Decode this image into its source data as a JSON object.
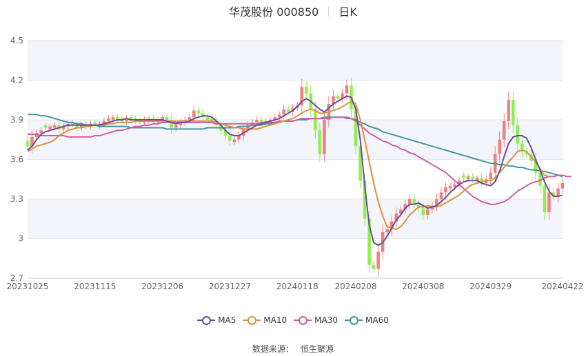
{
  "header": {
    "title": "华茂股份 000850",
    "period": "日K"
  },
  "source": {
    "label": "数据来源：",
    "name": "恒生聚源"
  },
  "chart_data": {
    "type": "candlestick",
    "title": "华茂股份 000850",
    "ylim": [
      2.7,
      4.5
    ],
    "yticks": [
      "4.5",
      "4.2",
      "3.9",
      "3.6",
      "3.3",
      "3",
      "2.7"
    ],
    "ytick_values": [
      4.5,
      4.2,
      3.9,
      3.6,
      3.3,
      3.0,
      2.7
    ],
    "xticks": [
      "20231025",
      "20231115",
      "20231206",
      "20231227",
      "20240118",
      "20240208",
      "20240308",
      "20240329",
      "20240422"
    ],
    "xtick_positions": [
      0,
      15,
      30,
      45,
      60,
      73,
      88,
      103,
      119
    ],
    "num_days": 120,
    "colors": {
      "up": "#f08080",
      "down": "#90ee50",
      "ma5": "#6a4c9c",
      "ma10": "#e0913a",
      "ma30": "#d05ca8",
      "ma60": "#3e9a9c"
    },
    "legend": [
      {
        "name": "MA5",
        "color": "#6a4c9c"
      },
      {
        "name": "MA10",
        "color": "#e0913a"
      },
      {
        "name": "MA30",
        "color": "#d05ca8"
      },
      {
        "name": "MA60",
        "color": "#3e9a9c"
      }
    ],
    "close": [
      3.7,
      3.77,
      3.8,
      3.82,
      3.84,
      3.85,
      3.86,
      3.83,
      3.85,
      3.87,
      3.86,
      3.84,
      3.86,
      3.85,
      3.87,
      3.86,
      3.87,
      3.89,
      3.91,
      3.92,
      3.9,
      3.89,
      3.91,
      3.9,
      3.89,
      3.88,
      3.9,
      3.91,
      3.89,
      3.9,
      3.92,
      3.9,
      3.84,
      3.86,
      3.88,
      3.9,
      3.92,
      3.97,
      3.95,
      3.92,
      3.9,
      3.89,
      3.86,
      3.82,
      3.78,
      3.74,
      3.75,
      3.78,
      3.83,
      3.86,
      3.88,
      3.9,
      3.88,
      3.89,
      3.9,
      3.92,
      3.94,
      3.98,
      3.96,
      3.99,
      4.01,
      4.15,
      4.1,
      3.98,
      3.82,
      3.64,
      3.9,
      4.02,
      4.08,
      4.06,
      4.1,
      4.16,
      3.98,
      3.7,
      3.44,
      3.15,
      2.8,
      2.77,
      2.9,
      3.05,
      3.07,
      3.13,
      3.19,
      3.22,
      3.26,
      3.3,
      3.26,
      3.23,
      3.18,
      3.22,
      3.25,
      3.3,
      3.35,
      3.39,
      3.4,
      3.41,
      3.44,
      3.46,
      3.47,
      3.45,
      3.46,
      3.42,
      3.45,
      3.5,
      3.64,
      3.75,
      3.89,
      4.05,
      3.86,
      3.72,
      3.66,
      3.64,
      3.59,
      3.5,
      3.4,
      3.2,
      3.35,
      3.32,
      3.38,
      3.42
    ],
    "up_days": [
      1,
      2,
      3,
      5,
      6,
      8,
      9,
      12,
      14,
      16,
      17,
      18,
      19,
      22,
      26,
      27,
      29,
      30,
      33,
      34,
      35,
      36,
      37,
      46,
      47,
      48,
      49,
      50,
      51,
      53,
      54,
      55,
      56,
      57,
      59,
      60,
      61,
      66,
      67,
      68,
      70,
      71,
      78,
      79,
      80,
      81,
      82,
      83,
      84,
      85,
      89,
      90,
      91,
      92,
      93,
      94,
      95,
      96,
      98,
      100,
      102,
      103,
      104,
      105,
      106,
      107,
      116,
      118,
      119
    ],
    "ma5": [
      3.67,
      3.7,
      3.75,
      3.79,
      3.81,
      3.82,
      3.83,
      3.84,
      3.85,
      3.86,
      3.86,
      3.86,
      3.86,
      3.86,
      3.86,
      3.86,
      3.86,
      3.87,
      3.88,
      3.89,
      3.9,
      3.9,
      3.91,
      3.9,
      3.9,
      3.9,
      3.9,
      3.9,
      3.9,
      3.9,
      3.9,
      3.89,
      3.88,
      3.87,
      3.88,
      3.88,
      3.89,
      3.91,
      3.92,
      3.93,
      3.93,
      3.92,
      3.89,
      3.86,
      3.82,
      3.79,
      3.78,
      3.78,
      3.8,
      3.82,
      3.84,
      3.86,
      3.87,
      3.88,
      3.89,
      3.9,
      3.91,
      3.93,
      3.95,
      3.97,
      4.0,
      4.04,
      4.06,
      4.04,
      4.01,
      3.98,
      3.96,
      3.99,
      4.02,
      4.04,
      4.06,
      4.08,
      4.07,
      3.98,
      3.75,
      3.4,
      3.1,
      2.97,
      2.95,
      2.97,
      3.02,
      3.08,
      3.14,
      3.18,
      3.23,
      3.26,
      3.26,
      3.27,
      3.25,
      3.23,
      3.24,
      3.25,
      3.28,
      3.31,
      3.35,
      3.38,
      3.41,
      3.43,
      3.44,
      3.44,
      3.44,
      3.42,
      3.41,
      3.4,
      3.43,
      3.51,
      3.62,
      3.72,
      3.77,
      3.78,
      3.78,
      3.76,
      3.69,
      3.6,
      3.52,
      3.43,
      3.36,
      3.32,
      3.32,
      3.33
    ],
    "ma10": [
      3.66,
      3.68,
      3.7,
      3.71,
      3.72,
      3.73,
      3.75,
      3.78,
      3.8,
      3.82,
      3.83,
      3.84,
      3.84,
      3.85,
      3.85,
      3.86,
      3.86,
      3.86,
      3.87,
      3.87,
      3.88,
      3.88,
      3.88,
      3.88,
      3.89,
      3.89,
      3.89,
      3.89,
      3.89,
      3.89,
      3.89,
      3.89,
      3.89,
      3.89,
      3.89,
      3.89,
      3.89,
      3.89,
      3.89,
      3.89,
      3.89,
      3.89,
      3.88,
      3.87,
      3.86,
      3.85,
      3.84,
      3.84,
      3.83,
      3.83,
      3.83,
      3.83,
      3.84,
      3.85,
      3.86,
      3.87,
      3.88,
      3.89,
      3.9,
      3.91,
      3.93,
      3.95,
      3.97,
      3.98,
      3.97,
      3.95,
      3.95,
      3.96,
      3.97,
      3.98,
      4.0,
      4.02,
      4.04,
      4.02,
      3.9,
      3.75,
      3.58,
      3.42,
      3.28,
      3.17,
      3.09,
      3.08,
      3.07,
      3.09,
      3.13,
      3.18,
      3.21,
      3.24,
      3.24,
      3.25,
      3.24,
      3.24,
      3.25,
      3.27,
      3.29,
      3.31,
      3.33,
      3.36,
      3.39,
      3.41,
      3.42,
      3.43,
      3.44,
      3.44,
      3.46,
      3.5,
      3.54,
      3.58,
      3.62,
      3.66,
      3.67,
      3.66,
      3.62,
      3.58,
      3.53,
      3.48,
      3.47
    ],
    "ma30": [
      3.79,
      3.79,
      3.79,
      3.78,
      3.78,
      3.78,
      3.78,
      3.78,
      3.78,
      3.77,
      3.77,
      3.77,
      3.77,
      3.77,
      3.77,
      3.78,
      3.78,
      3.79,
      3.8,
      3.81,
      3.82,
      3.82,
      3.83,
      3.84,
      3.85,
      3.85,
      3.86,
      3.86,
      3.87,
      3.87,
      3.88,
      3.88,
      3.88,
      3.88,
      3.88,
      3.88,
      3.88,
      3.88,
      3.88,
      3.88,
      3.88,
      3.88,
      3.87,
      3.87,
      3.87,
      3.87,
      3.87,
      3.87,
      3.87,
      3.87,
      3.87,
      3.87,
      3.88,
      3.88,
      3.88,
      3.88,
      3.89,
      3.89,
      3.89,
      3.89,
      3.9,
      3.91,
      3.91,
      3.91,
      3.91,
      3.91,
      3.91,
      3.91,
      3.92,
      3.92,
      3.92,
      3.92,
      3.91,
      3.89,
      3.86,
      3.83,
      3.8,
      3.78,
      3.76,
      3.74,
      3.73,
      3.71,
      3.7,
      3.68,
      3.67,
      3.65,
      3.64,
      3.62,
      3.6,
      3.58,
      3.56,
      3.54,
      3.52,
      3.5,
      3.47,
      3.44,
      3.41,
      3.38,
      3.35,
      3.32,
      3.3,
      3.28,
      3.27,
      3.26,
      3.26,
      3.27,
      3.28,
      3.3,
      3.33,
      3.36,
      3.38,
      3.4,
      3.42,
      3.43,
      3.44,
      3.46,
      3.47,
      3.47,
      3.48,
      3.48,
      3.47,
      3.47
    ],
    "ma60": [
      3.94,
      3.94,
      3.94,
      3.93,
      3.93,
      3.92,
      3.91,
      3.9,
      3.89,
      3.88,
      3.88,
      3.87,
      3.87,
      3.86,
      3.86,
      3.86,
      3.85,
      3.85,
      3.85,
      3.85,
      3.85,
      3.85,
      3.85,
      3.84,
      3.84,
      3.84,
      3.84,
      3.84,
      3.84,
      3.84,
      3.84,
      3.83,
      3.83,
      3.83,
      3.83,
      3.83,
      3.83,
      3.83,
      3.83,
      3.83,
      3.84,
      3.84,
      3.84,
      3.84,
      3.84,
      3.84,
      3.84,
      3.85,
      3.85,
      3.85,
      3.86,
      3.86,
      3.86,
      3.87,
      3.87,
      3.88,
      3.88,
      3.89,
      3.89,
      3.89,
      3.9,
      3.9,
      3.9,
      3.91,
      3.91,
      3.91,
      3.92,
      3.92,
      3.92,
      3.92,
      3.92,
      3.91,
      3.91,
      3.9,
      3.88,
      3.87,
      3.85,
      3.84,
      3.83,
      3.81,
      3.8,
      3.79,
      3.78,
      3.77,
      3.76,
      3.75,
      3.74,
      3.73,
      3.72,
      3.71,
      3.7,
      3.69,
      3.68,
      3.67,
      3.66,
      3.65,
      3.64,
      3.63,
      3.62,
      3.61,
      3.6,
      3.59,
      3.58,
      3.57,
      3.57,
      3.56,
      3.56,
      3.55,
      3.55,
      3.54,
      3.54,
      3.53,
      3.52,
      3.52,
      3.51,
      3.51,
      3.5,
      3.49,
      3.48,
      3.47
    ]
  }
}
